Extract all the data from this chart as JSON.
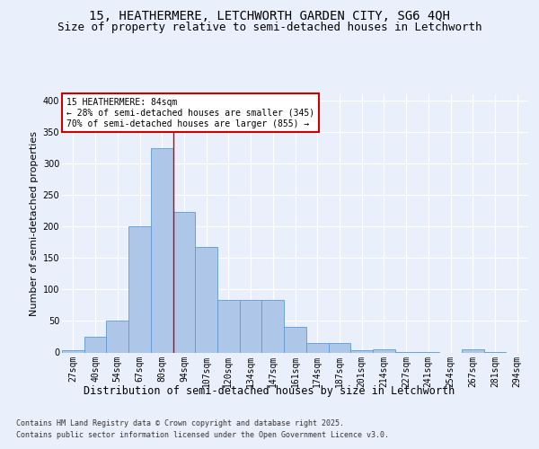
{
  "title1": "15, HEATHERMERE, LETCHWORTH GARDEN CITY, SG6 4QH",
  "title2": "Size of property relative to semi-detached houses in Letchworth",
  "xlabel": "Distribution of semi-detached houses by size in Letchworth",
  "ylabel": "Number of semi-detached properties",
  "categories": [
    "27sqm",
    "40sqm",
    "54sqm",
    "67sqm",
    "80sqm",
    "94sqm",
    "107sqm",
    "120sqm",
    "134sqm",
    "147sqm",
    "161sqm",
    "174sqm",
    "187sqm",
    "201sqm",
    "214sqm",
    "227sqm",
    "241sqm",
    "254sqm",
    "267sqm",
    "281sqm",
    "294sqm"
  ],
  "values": [
    3,
    25,
    50,
    200,
    325,
    223,
    168,
    83,
    83,
    83,
    40,
    15,
    15,
    4,
    5,
    1,
    1,
    0,
    5,
    1,
    0
  ],
  "bar_color": "#aec6e8",
  "bar_edge_color": "#5b9bd5",
  "property_line_x": 4.5,
  "annotation_text": "15 HEATHERMERE: 84sqm\n← 28% of semi-detached houses are smaller (345)\n70% of semi-detached houses are larger (855) →",
  "ylim": [
    0,
    410
  ],
  "yticks": [
    0,
    50,
    100,
    150,
    200,
    250,
    300,
    350,
    400
  ],
  "footnote1": "Contains HM Land Registry data © Crown copyright and database right 2025.",
  "footnote2": "Contains public sector information licensed under the Open Government Licence v3.0.",
  "bg_color": "#eaf0fb",
  "plot_bg_color": "#eaf0fb",
  "grid_color": "#ffffff",
  "title_fontsize": 10,
  "subtitle_fontsize": 9,
  "tick_fontsize": 7,
  "ylabel_fontsize": 8,
  "xlabel_fontsize": 8.5,
  "annot_fontsize": 7,
  "footnote_fontsize": 6
}
